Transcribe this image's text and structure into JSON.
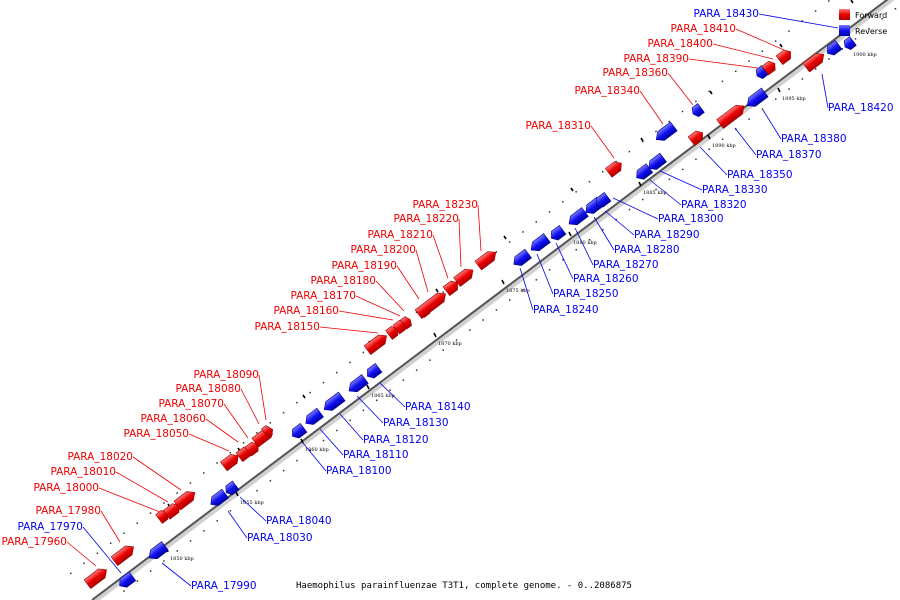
{
  "caption": "Haemophilus parainfluenzae T3T1, complete genome. - 0..2086875",
  "legend": {
    "forward": {
      "label": "Forward",
      "color": "#ee0000"
    },
    "reverse": {
      "label": "Reverse",
      "color": "#0000ee"
    }
  },
  "ticks": [
    "1850 kbp",
    "1855 kbp",
    "1860 kbp",
    "1865 kbp",
    "1870 kbp",
    "1875 kbp",
    "1880 kbp",
    "1885 kbp",
    "1890 kbp",
    "1895 kbp",
    "1900 kbp"
  ],
  "genes": [
    {
      "id": "PARA_17960",
      "strand": "forward"
    },
    {
      "id": "PARA_17970",
      "strand": "reverse"
    },
    {
      "id": "PARA_17980",
      "strand": "forward"
    },
    {
      "id": "PARA_17990",
      "strand": "reverse"
    },
    {
      "id": "PARA_18000",
      "strand": "forward"
    },
    {
      "id": "PARA_18010",
      "strand": "forward"
    },
    {
      "id": "PARA_18020",
      "strand": "forward"
    },
    {
      "id": "PARA_18030",
      "strand": "reverse"
    },
    {
      "id": "PARA_18040",
      "strand": "reverse"
    },
    {
      "id": "PARA_18050",
      "strand": "forward"
    },
    {
      "id": "PARA_18060",
      "strand": "forward"
    },
    {
      "id": "PARA_18070",
      "strand": "forward"
    },
    {
      "id": "PARA_18080",
      "strand": "forward"
    },
    {
      "id": "PARA_18090",
      "strand": "forward"
    },
    {
      "id": "PARA_18100",
      "strand": "reverse"
    },
    {
      "id": "PARA_18110",
      "strand": "reverse"
    },
    {
      "id": "PARA_18120",
      "strand": "reverse"
    },
    {
      "id": "PARA_18130",
      "strand": "reverse"
    },
    {
      "id": "PARA_18140",
      "strand": "reverse"
    },
    {
      "id": "PARA_18150",
      "strand": "forward"
    },
    {
      "id": "PARA_18160",
      "strand": "forward"
    },
    {
      "id": "PARA_18170",
      "strand": "forward"
    },
    {
      "id": "PARA_18180",
      "strand": "forward"
    },
    {
      "id": "PARA_18190",
      "strand": "forward"
    },
    {
      "id": "PARA_18200",
      "strand": "forward"
    },
    {
      "id": "PARA_18210",
      "strand": "forward"
    },
    {
      "id": "PARA_18220",
      "strand": "forward"
    },
    {
      "id": "PARA_18230",
      "strand": "forward"
    },
    {
      "id": "PARA_18240",
      "strand": "reverse"
    },
    {
      "id": "PARA_18250",
      "strand": "reverse"
    },
    {
      "id": "PARA_18260",
      "strand": "reverse"
    },
    {
      "id": "PARA_18270",
      "strand": "reverse"
    },
    {
      "id": "PARA_18280",
      "strand": "reverse"
    },
    {
      "id": "PARA_18290",
      "strand": "reverse"
    },
    {
      "id": "PARA_18300",
      "strand": "reverse"
    },
    {
      "id": "PARA_18310",
      "strand": "forward"
    },
    {
      "id": "PARA_18320",
      "strand": "reverse"
    },
    {
      "id": "PARA_18330",
      "strand": "reverse"
    },
    {
      "id": "PARA_18340",
      "strand": "forward"
    },
    {
      "id": "PARA_18350",
      "strand": "reverse"
    },
    {
      "id": "PARA_18360",
      "strand": "forward"
    },
    {
      "id": "PARA_18370",
      "strand": "reverse"
    },
    {
      "id": "PARA_18380",
      "strand": "reverse"
    },
    {
      "id": "PARA_18390",
      "strand": "forward"
    },
    {
      "id": "PARA_18400",
      "strand": "forward"
    },
    {
      "id": "PARA_18410",
      "strand": "forward"
    },
    {
      "id": "PARA_18420",
      "strand": "reverse"
    },
    {
      "id": "PARA_18430",
      "strand": "reverse"
    }
  ]
}
